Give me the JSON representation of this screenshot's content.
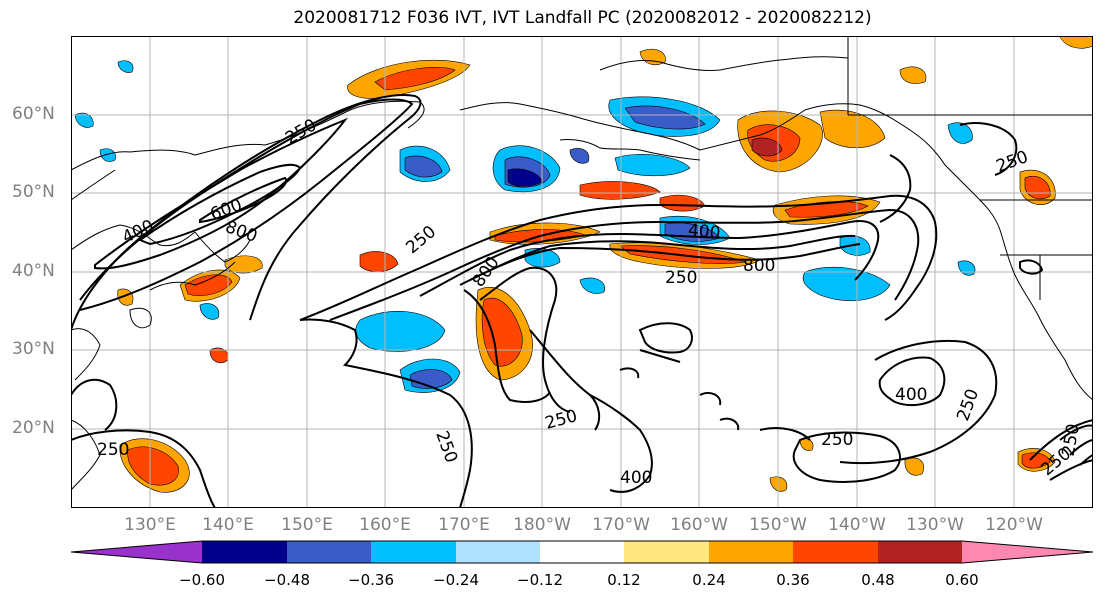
{
  "title": "2020081712 F036 IVT, IVT Landfall PC (2020082012 - 2020082212)",
  "lat_labels": [
    "60°N",
    "50°N",
    "40°N",
    "30°N",
    "20°N"
  ],
  "lon_labels": [
    "130°E",
    "140°E",
    "150°E",
    "160°E",
    "170°E",
    "180°W",
    "170°W",
    "160°W",
    "150°W",
    "140°W",
    "130°W",
    "120°W"
  ],
  "colorbar": {
    "colors": [
      "#9932cc",
      "#00008b",
      "#3a5cc8",
      "#00bfff",
      "#b0e2ff",
      "#ffffff",
      "#ffe680",
      "#ffa500",
      "#ff4500",
      "#b22222",
      "#ff88b0"
    ],
    "tick_labels": [
      "−0.60",
      "−0.48",
      "−0.36",
      "−0.24",
      "−0.12",
      "0.12",
      "0.24",
      "0.36",
      "0.48",
      "0.60"
    ]
  },
  "contour_labels": [
    "250",
    "600",
    "400",
    "800",
    "250",
    "400",
    "800",
    "250",
    "250",
    "800",
    "250",
    "250",
    "250",
    "250",
    "400",
    "400",
    "250",
    "250",
    "250"
  ]
}
